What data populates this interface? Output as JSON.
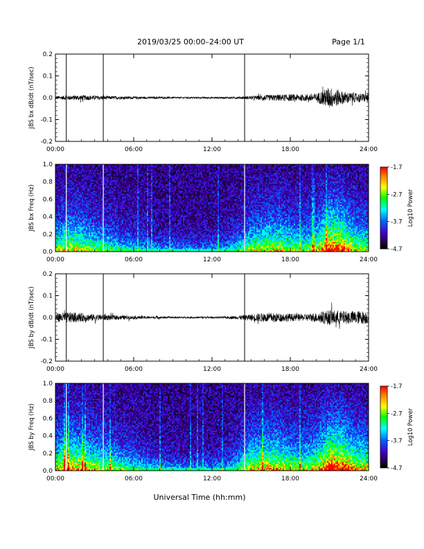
{
  "header": {
    "title": "2019/03/25  00:00–24:00 UT",
    "page_label": "Page 1/1"
  },
  "colorbar": {
    "label": "Log10 Power",
    "tick_labels": [
      "-1.7",
      "-2.7",
      "-3.7",
      "-4.7"
    ],
    "colors": [
      "#ff0000",
      "#ff8800",
      "#ffff00",
      "#00ff00",
      "#00ffff",
      "#0066ff",
      "#4400cc",
      "#220044",
      "#000000"
    ]
  },
  "chart_data": [
    {
      "type": "line",
      "title": "",
      "xlabel": "",
      "ylabel": "JBS bx dB/dt (nT/sec)",
      "xlim": [
        "00:00",
        "24:00"
      ],
      "ylim": [
        -0.2,
        0.2
      ],
      "x_ticks": [
        "00:00",
        "06:00",
        "12:00",
        "18:00",
        "24:00"
      ],
      "y_ticks": [
        "0.2",
        "0.1",
        "0.0",
        "-0.1",
        "-0.2"
      ],
      "series": [
        {
          "x": [
            "00:00",
            "01:00",
            "02:00",
            "03:00",
            "04:00",
            "05:00",
            "06:00",
            "07:00",
            "08:00",
            "09:00",
            "10:00",
            "11:00",
            "12:00",
            "13:00",
            "14:00",
            "15:00",
            "16:00",
            "17:00",
            "18:00",
            "19:00",
            "20:00",
            "21:00",
            "22:00",
            "23:00",
            "24:00"
          ],
          "amplitude": [
            0.008,
            0.01,
            0.012,
            0.01,
            0.008,
            0.007,
            0.006,
            0.005,
            0.005,
            0.004,
            0.004,
            0.004,
            0.004,
            0.004,
            0.005,
            0.008,
            0.012,
            0.015,
            0.016,
            0.015,
            0.02,
            0.05,
            0.03,
            0.02,
            0.02
          ]
        }
      ],
      "spikes": [
        "00:50",
        "03:40",
        "14:30"
      ],
      "grid": false
    },
    {
      "type": "heatmap",
      "title": "",
      "xlabel": "",
      "ylabel": "JBS bx Freq (Hz)",
      "xlim": [
        "00:00",
        "24:00"
      ],
      "ylim": [
        0.0,
        1.0
      ],
      "zlim": [
        -4.7,
        -1.7
      ],
      "x_ticks": [
        "00:00",
        "06:00",
        "12:00",
        "18:00",
        "24:00"
      ],
      "y_ticks": [
        "1.0",
        "0.8",
        "0.6",
        "0.4",
        "0.2",
        "0.0"
      ],
      "activity": [
        0.45,
        0.55,
        0.5,
        0.4,
        0.35,
        0.25,
        0.2,
        0.15,
        0.12,
        0.12,
        0.1,
        0.1,
        0.1,
        0.15,
        0.25,
        0.45,
        0.5,
        0.55,
        0.45,
        0.4,
        0.5,
        0.8,
        0.75,
        0.5,
        0.45
      ],
      "white_lines": [
        "00:50",
        "03:40",
        "14:30"
      ]
    },
    {
      "type": "line",
      "title": "",
      "xlabel": "",
      "ylabel": "JBS by dB/dt (nT/sec)",
      "xlim": [
        "00:00",
        "24:00"
      ],
      "ylim": [
        -0.2,
        0.2
      ],
      "x_ticks": [
        "00:00",
        "06:00",
        "12:00",
        "18:00",
        "24:00"
      ],
      "y_ticks": [
        "0.2",
        "0.1",
        "0.0",
        "-0.1",
        "-0.2"
      ],
      "series": [
        {
          "x": [
            "00:00",
            "01:00",
            "02:00",
            "03:00",
            "04:00",
            "05:00",
            "06:00",
            "07:00",
            "08:00",
            "09:00",
            "10:00",
            "11:00",
            "12:00",
            "13:00",
            "14:00",
            "15:00",
            "16:00",
            "17:00",
            "18:00",
            "19:00",
            "20:00",
            "21:00",
            "22:00",
            "23:00",
            "24:00"
          ],
          "amplitude": [
            0.02,
            0.025,
            0.02,
            0.015,
            0.012,
            0.01,
            0.008,
            0.006,
            0.005,
            0.004,
            0.004,
            0.004,
            0.004,
            0.005,
            0.008,
            0.015,
            0.022,
            0.02,
            0.018,
            0.015,
            0.022,
            0.035,
            0.03,
            0.03,
            0.03
          ]
        }
      ],
      "spikes": [
        "00:50",
        "03:40",
        "14:30"
      ],
      "grid": false
    },
    {
      "type": "heatmap",
      "title": "",
      "xlabel": "Universal Time (hh:mm)",
      "ylabel": "JBS by Freq (Hz)",
      "xlim": [
        "00:00",
        "24:00"
      ],
      "ylim": [
        0.0,
        1.0
      ],
      "zlim": [
        -4.7,
        -1.7
      ],
      "x_ticks": [
        "00:00",
        "06:00",
        "12:00",
        "18:00",
        "24:00"
      ],
      "y_ticks": [
        "1.0",
        "0.8",
        "0.6",
        "0.4",
        "0.2",
        "0.0"
      ],
      "activity": [
        0.55,
        0.65,
        0.6,
        0.5,
        0.45,
        0.35,
        0.3,
        0.2,
        0.15,
        0.12,
        0.1,
        0.1,
        0.1,
        0.15,
        0.3,
        0.55,
        0.6,
        0.6,
        0.5,
        0.45,
        0.55,
        0.85,
        0.8,
        0.6,
        0.55
      ],
      "white_lines": [
        "00:50",
        "03:40",
        "14:30"
      ]
    }
  ]
}
